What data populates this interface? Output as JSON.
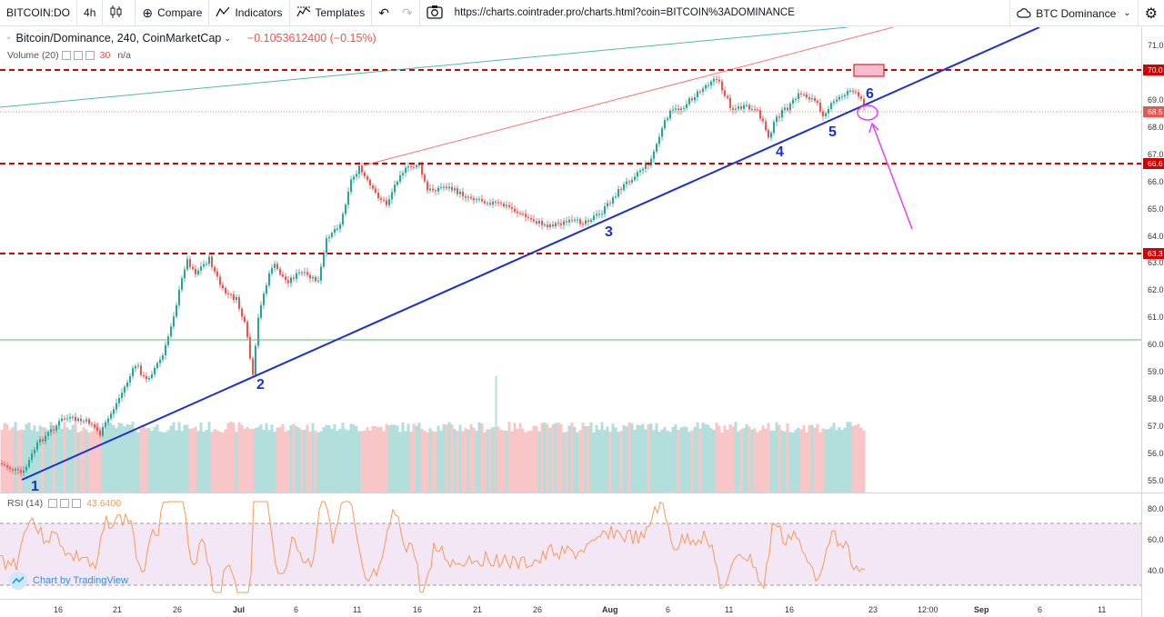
{
  "toolbar": {
    "symbol": "BITCOIN:DO",
    "interval": "4h",
    "compare_label": "Compare",
    "indicators_label": "Indicators",
    "templates_label": "Templates",
    "url": "https://charts.cointrader.pro/charts.html?coin=BITCOIN%3ADOMINANCE",
    "btc_dominance_label": "BTC Dominance"
  },
  "legend": {
    "title": "Bitcoin/Dominance, 240, CoinMarketCap",
    "change": "−0.1053612400 (−0.15%)"
  },
  "volume": {
    "label": "Volume (20)",
    "value": "30",
    "na": "n/a"
  },
  "rsi": {
    "label": "RSI (14)",
    "value": "43.6400"
  },
  "branding": "Chart by TradingView",
  "price_axis": [
    "71.0",
    "70.0",
    "69.0",
    "68.0",
    "67.0",
    "66.0",
    "65.0",
    "64.0",
    "63.0",
    "62.0",
    "61.0",
    "60.0",
    "59.0",
    "58.0",
    "57.0",
    "56.0",
    "55.0"
  ],
  "price_tags": [
    "70.0",
    "68.5",
    "66.6",
    "63.3"
  ],
  "rsi_axis": [
    "80.0",
    "60.0",
    "40.0"
  ],
  "time_axis": [
    "16",
    "21",
    "26",
    "Jul",
    "6",
    "11",
    "16",
    "21",
    "26",
    "Aug",
    "6",
    "11",
    "16",
    "23",
    "12:00",
    "Sep",
    "6",
    "11"
  ],
  "wave_labels": [
    "1",
    "2",
    "3",
    "4",
    "5",
    "6"
  ],
  "colors": {
    "support": "#d50000",
    "trend": "#1e2fd0",
    "arrow": "#e040fb",
    "up": "#26a69a",
    "down": "#ef5350"
  }
}
